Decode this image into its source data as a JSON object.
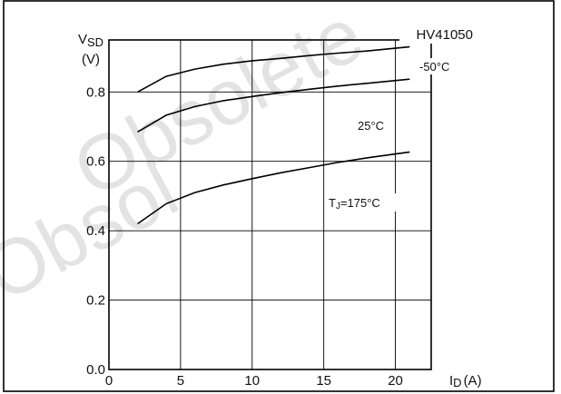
{
  "chart_data": {
    "type": "line",
    "code": "HV41050",
    "ylabel": "VSD (V)",
    "ylabel_parts": {
      "main": "V",
      "sub": "SD",
      "unit": "(V)"
    },
    "xlabel": "ID(A)",
    "xlabel_parts": {
      "main": "I",
      "sub": "D",
      "unit": "(A)"
    },
    "xlim": [
      0,
      22.5
    ],
    "ylim": [
      0.0,
      0.95
    ],
    "x_ticks": [
      "0",
      "5",
      "10",
      "15",
      "20"
    ],
    "x_tick_values": [
      0,
      5,
      10,
      15,
      20
    ],
    "y_ticks": [
      "0.0",
      "0.2",
      "0.4",
      "0.6",
      "0.8"
    ],
    "y_tick_values": [
      0.0,
      0.2,
      0.4,
      0.6,
      0.8
    ],
    "grid": true,
    "series": [
      {
        "name": "-50°C",
        "x": [
          2,
          4,
          6,
          8,
          10,
          12,
          14,
          16,
          18,
          21
        ],
        "y": [
          0.8,
          0.845,
          0.866,
          0.88,
          0.89,
          0.897,
          0.905,
          0.912,
          0.918,
          0.93
        ]
      },
      {
        "name": "25°C",
        "x": [
          2,
          4,
          6,
          8,
          10,
          12,
          14,
          16,
          18,
          21
        ],
        "y": [
          0.685,
          0.733,
          0.758,
          0.775,
          0.787,
          0.798,
          0.808,
          0.817,
          0.825,
          0.837
        ]
      },
      {
        "name": "TJ=175°C",
        "x": [
          2,
          4,
          6,
          8,
          10,
          12,
          14,
          16,
          18,
          21
        ],
        "y": [
          0.42,
          0.478,
          0.51,
          0.532,
          0.55,
          0.567,
          0.582,
          0.597,
          0.61,
          0.627
        ]
      }
    ],
    "annotations": [
      {
        "text": "-50°C",
        "series": 0
      },
      {
        "text": "25°C",
        "series": 1
      },
      {
        "text": "TJ=175°C",
        "series": 2
      }
    ],
    "annotation_parts": {
      "t_main": "T",
      "t_sub": "J",
      "t_rest": "=175°C"
    }
  },
  "watermark": [
    "Obsolete",
    "Obsol"
  ]
}
